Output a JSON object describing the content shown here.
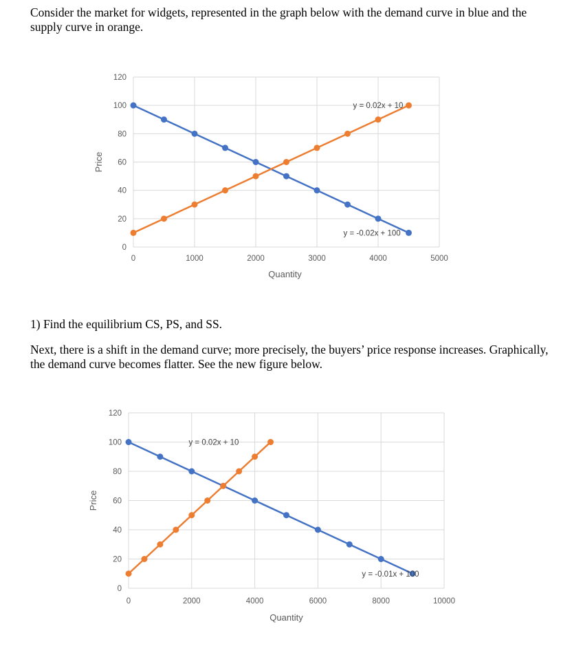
{
  "intro_text": "Consider the market for widgets, represented in the graph below with the demand curve in blue and the supply curve in orange.",
  "question_1": "1) Find the equilibrium CS, PS, and SS.",
  "next_text": "Next, there is a shift in the demand curve; more precisely, the buyers’ price response increases. Graphically, the demand curve becomes flatter. See the new figure below.",
  "colors": {
    "demand": "#4472c4",
    "supply": "#ed7d31"
  },
  "chart_data": [
    {
      "type": "line",
      "xlabel": "Quantity",
      "ylabel": "Price",
      "xlim": [
        0,
        5000
      ],
      "ylim": [
        0,
        120
      ],
      "xticks": [
        0,
        1000,
        2000,
        3000,
        4000,
        5000
      ],
      "yticks": [
        0,
        20,
        40,
        60,
        80,
        100,
        120
      ],
      "grid": true,
      "series": [
        {
          "role": "demand",
          "color": "#4472c4",
          "x": [
            0,
            500,
            1000,
            1500,
            2000,
            2500,
            3000,
            3500,
            4000,
            4500
          ],
          "y": [
            100,
            90,
            80,
            70,
            60,
            50,
            40,
            30,
            20,
            10
          ]
        },
        {
          "role": "supply",
          "color": "#ed7d31",
          "x": [
            0,
            500,
            1000,
            1500,
            2000,
            2500,
            3000,
            3500,
            4000,
            4500
          ],
          "y": [
            10,
            20,
            30,
            40,
            50,
            60,
            70,
            80,
            90,
            100
          ]
        }
      ],
      "annotations": [
        {
          "text": "y = 0.02x + 10",
          "x": 4000,
          "y": 100
        },
        {
          "text": "y = -0.02x + 100",
          "x": 3900,
          "y": 10
        }
      ]
    },
    {
      "type": "line",
      "xlabel": "Quantity",
      "ylabel": "Price",
      "xlim": [
        0,
        10000
      ],
      "ylim": [
        0,
        120
      ],
      "xticks": [
        0,
        2000,
        4000,
        6000,
        8000,
        10000
      ],
      "yticks": [
        0,
        20,
        40,
        60,
        80,
        100,
        120
      ],
      "grid": true,
      "series": [
        {
          "role": "demand",
          "color": "#4472c4",
          "x": [
            0,
            1000,
            2000,
            3000,
            4000,
            5000,
            6000,
            7000,
            8000,
            9000
          ],
          "y": [
            100,
            90,
            80,
            70,
            60,
            50,
            40,
            30,
            20,
            10
          ]
        },
        {
          "role": "supply",
          "color": "#ed7d31",
          "x": [
            0,
            500,
            1000,
            1500,
            2000,
            2500,
            3000,
            3500,
            4000,
            4500
          ],
          "y": [
            10,
            20,
            30,
            40,
            50,
            60,
            70,
            80,
            90,
            100
          ]
        }
      ],
      "annotations": [
        {
          "text": "y = 0.02x + 10",
          "x": 2700,
          "y": 100
        },
        {
          "text": "y = -0.01x + 100",
          "x": 8300,
          "y": 10
        }
      ]
    }
  ]
}
